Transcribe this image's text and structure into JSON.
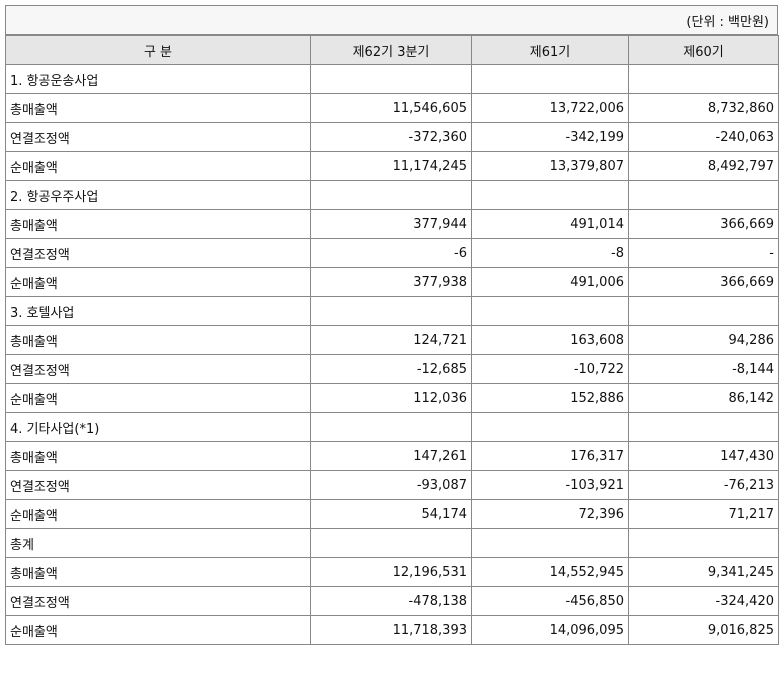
{
  "unit_note": "(단위 : 백만원)",
  "headers": [
    "구 분",
    "제62기 3분기",
    "제61기",
    "제60기"
  ],
  "sections": [
    {
      "title": "1. 항공운송사업",
      "rows": [
        {
          "label": "총매출액",
          "values": [
            "11,546,605",
            "13,722,006",
            "8,732,860"
          ]
        },
        {
          "label": "연결조정액",
          "values": [
            "-372,360",
            "-342,199",
            "-240,063"
          ]
        },
        {
          "label": "순매출액",
          "values": [
            "11,174,245",
            "13,379,807",
            "8,492,797"
          ]
        }
      ]
    },
    {
      "title": "2. 항공우주사업",
      "rows": [
        {
          "label": "총매출액",
          "values": [
            "377,944",
            "491,014",
            "366,669"
          ]
        },
        {
          "label": "연결조정액",
          "values": [
            "-6",
            "-8",
            "-"
          ]
        },
        {
          "label": "순매출액",
          "values": [
            "377,938",
            "491,006",
            "366,669"
          ]
        }
      ]
    },
    {
      "title": "3. 호텔사업",
      "rows": [
        {
          "label": "총매출액",
          "values": [
            "124,721",
            "163,608",
            "94,286"
          ]
        },
        {
          "label": "연결조정액",
          "values": [
            "-12,685",
            "-10,722",
            "-8,144"
          ]
        },
        {
          "label": "순매출액",
          "values": [
            "112,036",
            "152,886",
            "86,142"
          ]
        }
      ]
    },
    {
      "title": "4. 기타사업(*1)",
      "rows": [
        {
          "label": "총매출액",
          "values": [
            "147,261",
            "176,317",
            "147,430"
          ]
        },
        {
          "label": "연결조정액",
          "values": [
            "-93,087",
            "-103,921",
            "-76,213"
          ]
        },
        {
          "label": "순매출액",
          "values": [
            "54,174",
            "72,396",
            "71,217"
          ]
        }
      ]
    },
    {
      "title": "총계",
      "rows": [
        {
          "label": "총매출액",
          "values": [
            "12,196,531",
            "14,552,945",
            "9,341,245"
          ]
        },
        {
          "label": "연결조정액",
          "values": [
            "-478,138",
            "-456,850",
            "-324,420"
          ]
        },
        {
          "label": "순매출액",
          "values": [
            "11,718,393",
            "14,096,095",
            "9,016,825"
          ]
        }
      ]
    }
  ]
}
